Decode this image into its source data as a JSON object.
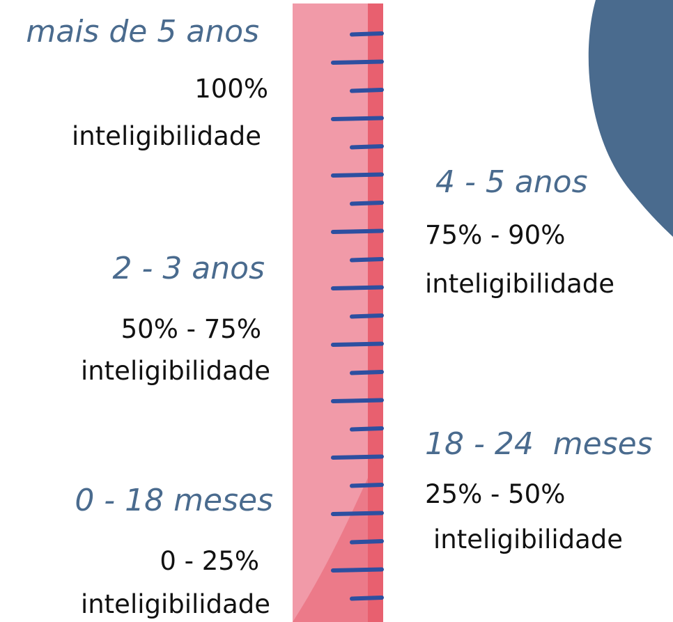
{
  "stages": [
    {
      "age": "mais de 5 anos",
      "range": "100%",
      "label": "inteligibilidade"
    },
    {
      "age": "4 - 5 anos",
      "range": "75% - 90%",
      "label": "inteligibilidade"
    },
    {
      "age": "2 - 3 anos",
      "range": "50% - 75%",
      "label": "inteligibilidade"
    },
    {
      "age": "18 - 24  meses",
      "range": "25% - 50%",
      "label": "inteligibilidade"
    },
    {
      "age": "0 - 18 meses",
      "range": "0 - 25%",
      "label": "inteligibilidade"
    }
  ]
}
